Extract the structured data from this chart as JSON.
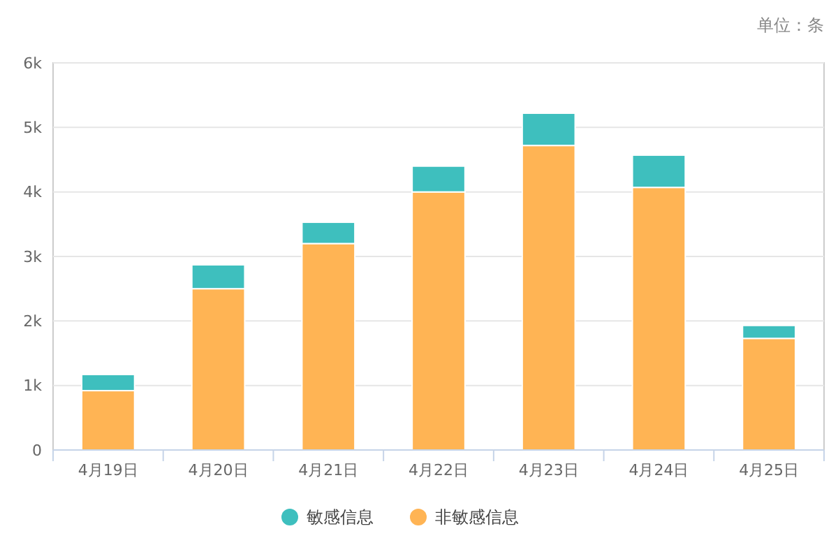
{
  "chart_data": {
    "type": "bar",
    "stacked": true,
    "categories": [
      "4月19日",
      "4月20日",
      "4月21日",
      "4月22日",
      "4月23日",
      "4月24日",
      "4月25日"
    ],
    "series": [
      {
        "name": "非敏感信息",
        "color": "#ffb454",
        "values": [
          920,
          2500,
          3200,
          4000,
          4720,
          4070,
          1730
        ]
      },
      {
        "name": "敏感信息",
        "color": "#3ebfbe",
        "values": [
          250,
          370,
          330,
          400,
          500,
          500,
          200
        ]
      }
    ],
    "ylim": [
      0,
      6000
    ],
    "yticks": [
      0,
      {
        "value": 1000,
        "label": "1k"
      },
      {
        "value": 2000,
        "label": "2k"
      },
      {
        "value": 3000,
        "label": "3k"
      },
      {
        "value": 4000,
        "label": "4k"
      },
      {
        "value": 5000,
        "label": "5k"
      },
      {
        "value": 6000,
        "label": "6k"
      }
    ],
    "grid": "y",
    "legend": "bottom",
    "annotations": [
      "单位：条"
    ]
  }
}
